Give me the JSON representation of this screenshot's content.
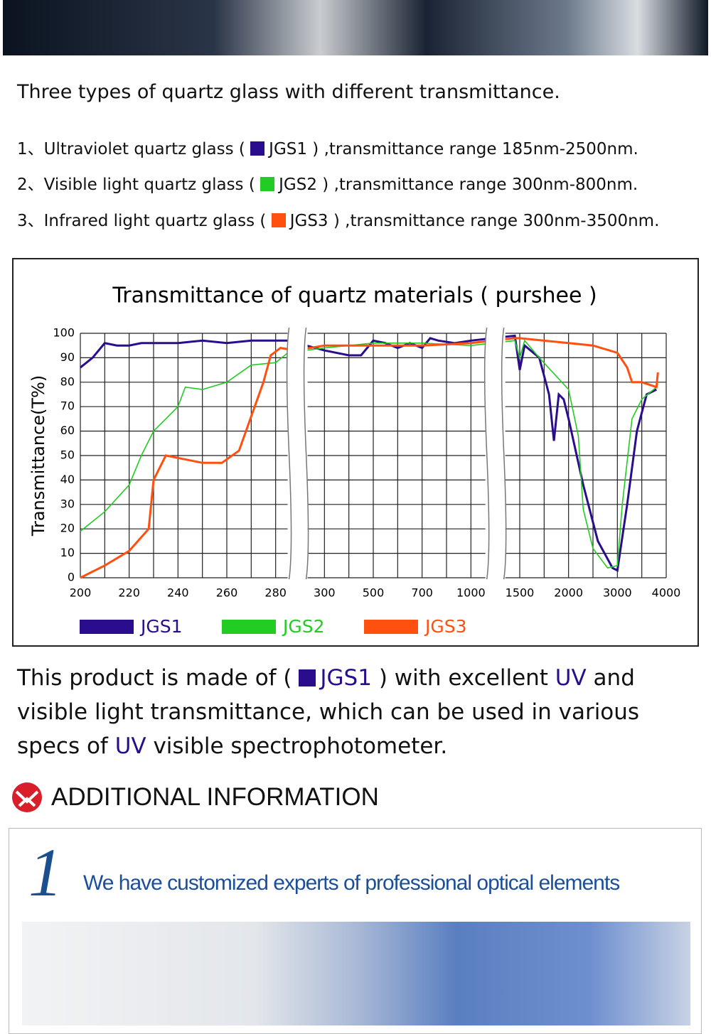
{
  "header": {
    "title": "Three types of quartz glass with different transmittance."
  },
  "list": [
    {
      "prefix": "1、Ultraviolet quartz glass ( ",
      "code": "JGS1",
      "suffix": " ) ,transmittance range 185nm-2500nm."
    },
    {
      "prefix": "2、Visible light quartz glass ( ",
      "code": "JGS2",
      "suffix": " ) ,transmittance range 300nm-800nm."
    },
    {
      "prefix": "3、Infrared light quartz glass ( ",
      "code": "JGS3",
      "suffix": " ) ,transmittance range 300nm-3500nm."
    }
  ],
  "chart_data": {
    "type": "line",
    "title": "Transmittance of quartz materials ( purshee )",
    "y_label": "Transmittance(T%)",
    "xticks": [
      200,
      220,
      240,
      260,
      280,
      300,
      500,
      700,
      1000,
      1500,
      2000,
      3000,
      4000
    ],
    "xlim": [
      200,
      4000
    ],
    "ylim": [
      0,
      100
    ],
    "yticks": [
      0,
      10,
      20,
      30,
      40,
      50,
      60,
      70,
      80,
      90,
      100
    ],
    "grid": true,
    "series": [
      {
        "name": "JGS1",
        "color": "#2a0d8c",
        "x": [
          200,
          205,
          210,
          215,
          220,
          225,
          230,
          240,
          250,
          260,
          270,
          280,
          285,
          300,
          400,
          450,
          500,
          550,
          600,
          650,
          700,
          750,
          800,
          900,
          1000,
          1450,
          1500,
          1550,
          1700,
          1800,
          1850,
          1900,
          1950,
          2000,
          2300,
          2600,
          2900,
          3000,
          3200,
          3400,
          3600,
          3800
        ],
        "values": [
          86,
          90,
          96,
          95,
          95,
          96,
          96,
          96,
          97,
          96,
          97,
          97,
          97,
          93,
          91,
          91,
          97,
          96,
          94,
          96,
          94,
          98,
          97,
          96,
          97,
          99,
          85,
          95,
          90,
          75,
          56,
          75,
          73,
          65,
          38,
          15,
          4,
          3,
          30,
          60,
          75,
          77
        ]
      },
      {
        "name": "JGS2",
        "color": "#22cc22",
        "x": [
          200,
          210,
          220,
          225,
          230,
          235,
          240,
          243,
          250,
          260,
          270,
          280,
          285,
          300,
          500,
          700,
          1000,
          1450,
          1500,
          1550,
          1700,
          2000,
          2200,
          2300,
          2500,
          2800,
          3000,
          3100,
          3300,
          3500,
          3800
        ],
        "values": [
          19,
          27,
          38,
          50,
          60,
          65,
          70,
          78,
          77,
          80,
          87,
          88,
          92,
          94,
          96,
          96,
          95,
          97,
          90,
          97,
          90,
          77,
          58,
          28,
          12,
          4,
          5,
          30,
          65,
          73,
          78
        ]
      },
      {
        "name": "JGS3",
        "color": "#ff5010",
        "x": [
          200,
          210,
          220,
          228,
          230,
          235,
          240,
          250,
          258,
          265,
          270,
          275,
          278,
          282,
          288,
          300,
          500,
          700,
          1000,
          1450,
          1500,
          2000,
          2500,
          3000,
          3200,
          3300,
          3500,
          3800,
          3830
        ],
        "values": [
          0,
          5,
          11,
          20,
          40,
          50,
          49,
          47,
          47,
          52,
          66,
          80,
          91,
          94,
          93,
          95,
          95,
          95,
          96,
          98,
          98,
          96,
          95,
          92,
          86,
          80,
          80,
          78,
          84
        ]
      }
    ]
  },
  "description": {
    "parts": [
      "This product is made of ( ",
      "JGS1",
      " ) with excellent ",
      "UV",
      " and visible light transmittance, which can be used in various specs of ",
      "UV",
      " visible spectrophotometer."
    ]
  },
  "section": {
    "title": "ADDITIONAL INFORMATION"
  },
  "feature": {
    "number": "1",
    "text": "We have customized experts of professional optical elements"
  }
}
